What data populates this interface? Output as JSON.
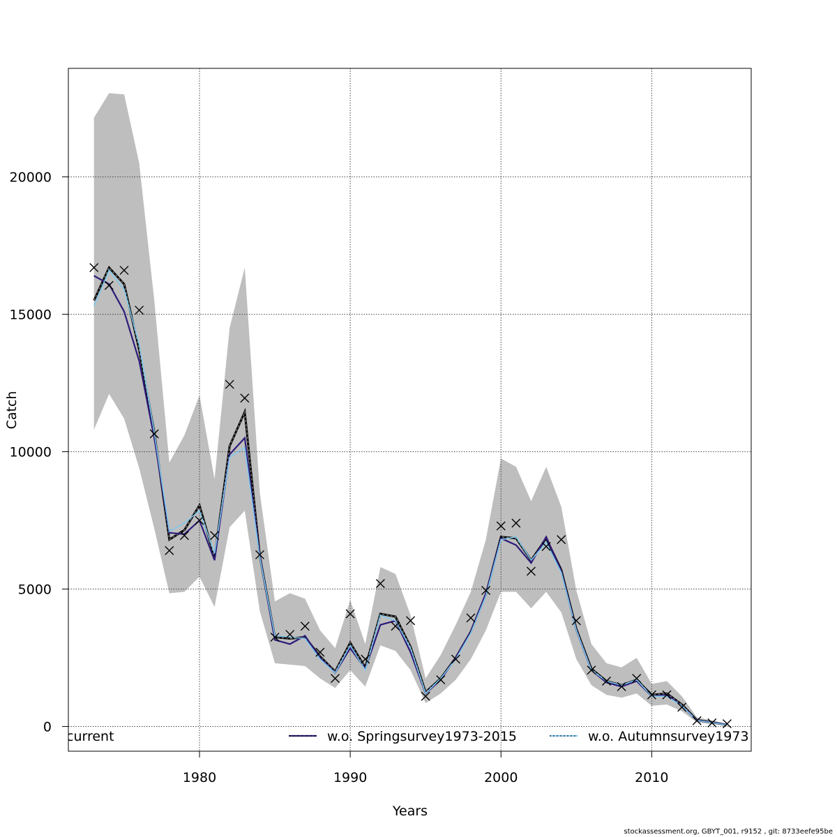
{
  "chart_data": {
    "type": "line",
    "xlabel": "Years",
    "ylabel": "Catch",
    "xlim": [
      1971.3,
      2016.6
    ],
    "ylim": [
      -900,
      23950
    ],
    "x_ticks": [
      1980,
      1990,
      2000,
      2010
    ],
    "y_ticks": [
      0,
      5000,
      10000,
      15000,
      20000
    ],
    "grid": true,
    "legend_position": "bottom",
    "colors": {
      "band": "#bebebe",
      "current": "#000000",
      "spring": "#2e1a78",
      "autumn": "#7ec8ee",
      "observed": "#000000",
      "grid": "#444444"
    },
    "x": [
      1973,
      1974,
      1975,
      1976,
      1977,
      1978,
      1979,
      1980,
      1981,
      1982,
      1983,
      1984,
      1985,
      1986,
      1987,
      1988,
      1989,
      1990,
      1991,
      1992,
      1993,
      1994,
      1995,
      1996,
      1997,
      1998,
      1999,
      2000,
      2001,
      2002,
      2003,
      2004,
      2005,
      2006,
      2007,
      2008,
      2009,
      2010,
      2011,
      2012,
      2013,
      2014,
      2015
    ],
    "band_upper": [
      22150,
      23050,
      23000,
      20500,
      15500,
      9600,
      10600,
      12050,
      9000,
      14500,
      16700,
      8500,
      4550,
      4850,
      4650,
      3500,
      2850,
      4600,
      3000,
      5800,
      5550,
      4050,
      1750,
      2600,
      3700,
      4900,
      6800,
      9750,
      9450,
      8200,
      9450,
      8000,
      4950,
      3000,
      2300,
      2150,
      2500,
      1550,
      1650,
      1100,
      330,
      220,
      90
    ],
    "band_lower": [
      10800,
      12100,
      11200,
      9400,
      7200,
      4850,
      4900,
      5450,
      4350,
      7250,
      7850,
      4200,
      2300,
      2250,
      2200,
      1750,
      1400,
      2050,
      1450,
      2950,
      2750,
      2050,
      850,
      1200,
      1700,
      2450,
      3500,
      4900,
      4900,
      4300,
      4900,
      4150,
      2450,
      1500,
      1150,
      1050,
      1200,
      750,
      800,
      550,
      150,
      90,
      40
    ],
    "series": [
      {
        "name": "current",
        "values": [
          15500,
          16700,
          16100,
          13700,
          10700,
          6800,
          7150,
          8050,
          6150,
          10200,
          11450,
          6200,
          3250,
          3200,
          3250,
          2550,
          2000,
          3050,
          2150,
          4100,
          4000,
          2900,
          1250,
          1750,
          2500,
          3450,
          4800,
          6900,
          6850,
          6050,
          6850,
          5700,
          3550,
          2100,
          1650,
          1500,
          1700,
          1150,
          1200,
          800,
          230,
          150,
          60
        ]
      },
      {
        "name": "w.o. Springsurvey1973-2015",
        "values": [
          16400,
          16100,
          15100,
          13300,
          10500,
          7050,
          7000,
          7500,
          6050,
          9900,
          10500,
          6200,
          3150,
          3000,
          3300,
          2500,
          1950,
          2850,
          2100,
          3700,
          3850,
          2700,
          1200,
          1700,
          2500,
          3450,
          4850,
          6850,
          6600,
          5950,
          6900,
          5650,
          3500,
          2050,
          1600,
          1450,
          1650,
          1100,
          1150,
          750,
          220,
          150,
          60
        ]
      },
      {
        "name": "w.o. Autumnsurvey1973",
        "values": [
          15300,
          16600,
          15900,
          13900,
          10700,
          7100,
          7400,
          7850,
          6300,
          9800,
          10150,
          6150,
          3300,
          3250,
          3200,
          2450,
          1950,
          2950,
          2050,
          4050,
          3850,
          2850,
          1200,
          1750,
          2450,
          3400,
          4750,
          6800,
          6900,
          6050,
          6700,
          5600,
          3500,
          2050,
          1650,
          1500,
          1700,
          1100,
          1100,
          750,
          220,
          140,
          60
        ]
      }
    ],
    "observed": {
      "x": [
        1973,
        1974,
        1975,
        1976,
        1977,
        1978,
        1979,
        1980,
        1981,
        1982,
        1983,
        1984,
        1985,
        1986,
        1987,
        1988,
        1989,
        1990,
        1991,
        1992,
        1993,
        1994,
        1995,
        1996,
        1997,
        1998,
        1999,
        2000,
        2001,
        2002,
        2003,
        2004,
        2005,
        2006,
        2007,
        2008,
        2009,
        2010,
        2011,
        2012,
        2013,
        2014,
        2015
      ],
      "values": [
        16700,
        16050,
        16600,
        15150,
        10650,
        6400,
        6950,
        7500,
        6950,
        12450,
        11950,
        6250,
        3250,
        3350,
        3650,
        2700,
        1750,
        4100,
        2450,
        5200,
        3650,
        3850,
        1100,
        1700,
        2450,
        3950,
        4950,
        7300,
        7400,
        5650,
        6550,
        6800,
        3850,
        2050,
        1650,
        1450,
        1750,
        1150,
        1150,
        700,
        210,
        130,
        100
      ]
    },
    "legend": [
      "current",
      "w.o. Springsurvey1973-2015",
      "w.o. Autumnsurvey1973"
    ]
  },
  "footer_text": "stockassessment.org, GBYT_001, r9152 , git: 8733eefe95be"
}
